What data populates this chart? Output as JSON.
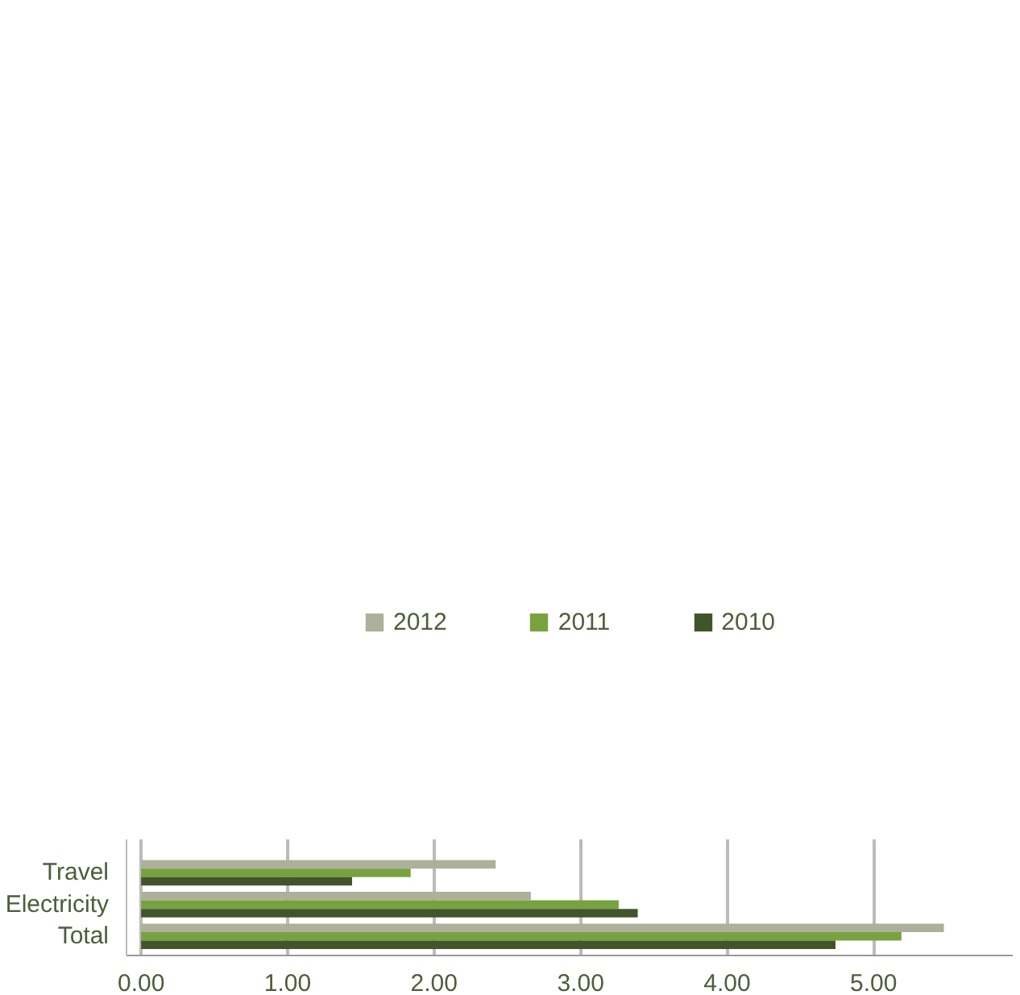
{
  "chart_data": {
    "type": "bar",
    "orientation": "horizontal",
    "categories": [
      "Travel",
      "Electricity",
      "Total"
    ],
    "series": [
      {
        "name": "2012",
        "color": "#adb09a",
        "values": [
          2.42,
          2.66,
          5.48
        ]
      },
      {
        "name": "2011",
        "color": "#78a240",
        "values": [
          1.84,
          3.26,
          5.19
        ]
      },
      {
        "name": "2010",
        "color": "#40562a",
        "values": [
          1.44,
          3.39,
          4.74
        ]
      }
    ],
    "xlim": [
      -0.1,
      5.95
    ],
    "xticks": [
      {
        "value": 0,
        "label": "0.00"
      },
      {
        "value": 1,
        "label": "1.00"
      },
      {
        "value": 2,
        "label": "2.00"
      },
      {
        "value": 3,
        "label": "3.00"
      },
      {
        "value": 4,
        "label": "4.00"
      },
      {
        "value": 5,
        "label": "5.00"
      }
    ],
    "grid": "x",
    "legend": "top"
  }
}
